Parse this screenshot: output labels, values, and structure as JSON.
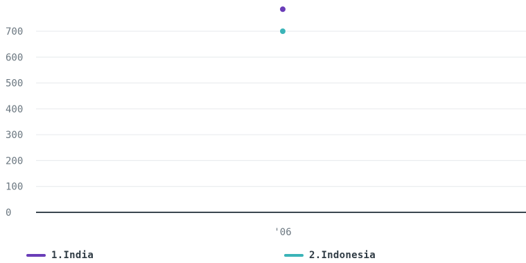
{
  "chart_data": {
    "type": "scatter",
    "x_categories": [
      "'06"
    ],
    "ylim": [
      0,
      780
    ],
    "y_ticks": [
      0,
      100,
      200,
      300,
      400,
      500,
      600,
      700
    ],
    "grid": true,
    "legend_position": "bottom",
    "series": [
      {
        "name": "1.India",
        "color": "#6a3db8",
        "points": [
          {
            "x": "'06",
            "y": 785
          }
        ]
      },
      {
        "name": "2.Indonesia",
        "color": "#3bb4b8",
        "points": [
          {
            "x": "'06",
            "y": 700
          }
        ]
      }
    ]
  },
  "legend": {
    "items": [
      {
        "label": "1.India",
        "color": "#6a3db8"
      },
      {
        "label": "2.Indonesia",
        "color": "#3bb4b8"
      }
    ]
  }
}
